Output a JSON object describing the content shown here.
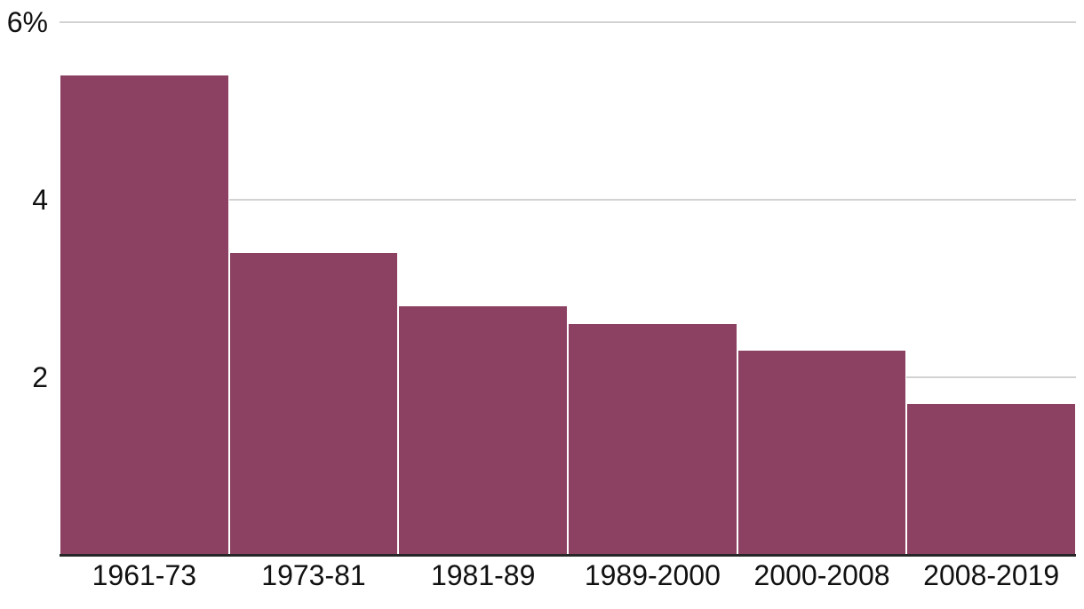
{
  "chart_data": {
    "type": "bar",
    "categories": [
      "1961-73",
      "1973-81",
      "1981-89",
      "1989-2000",
      "2000-2008",
      "2008-2019"
    ],
    "values": [
      5.4,
      3.4,
      2.8,
      2.6,
      2.3,
      1.7
    ],
    "title": "",
    "xlabel": "",
    "ylabel": "",
    "ylim": [
      0,
      6
    ],
    "yticks": [
      {
        "value": 6,
        "label": "6%"
      },
      {
        "value": 4,
        "label": "4"
      },
      {
        "value": 2,
        "label": "2"
      }
    ],
    "grid": true,
    "legend": false,
    "bar_color": "#8C4163",
    "gridline_color": "#d2d2d2",
    "axis_line_color": "#262626",
    "text_color": "#111111",
    "background": "#ffffff"
  }
}
